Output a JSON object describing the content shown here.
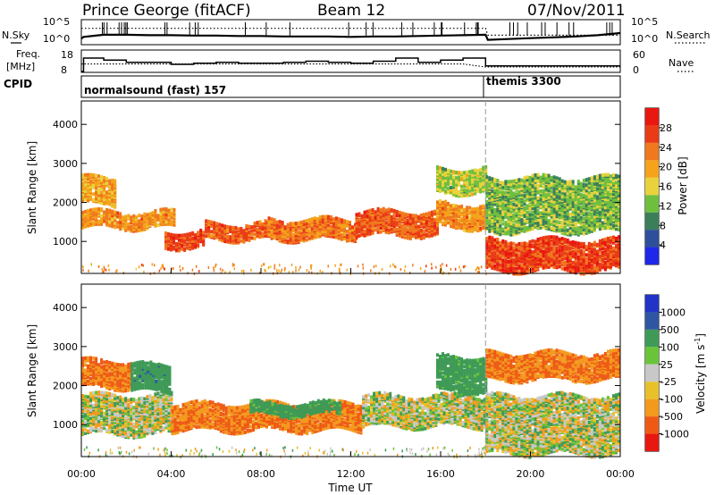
{
  "header": {
    "station": "Prince George (fitACF)",
    "beam": "Beam 12",
    "date": "07/Nov/2011"
  },
  "strip_labels": {
    "nsky": "N.Sky",
    "nsky_ticks": [
      "10^5",
      "10^0"
    ],
    "nsearch": "N.Search",
    "nsearch_ticks": [
      "10^5",
      "10^0"
    ],
    "freq_line1": "Freq.",
    "freq_line2": "[MHz]",
    "freq_ticks": [
      "18",
      "8"
    ],
    "nave": "Nave",
    "nave_ticks": [
      "60",
      "0"
    ],
    "cpid": "CPID",
    "mode1": "normalsound (fast) 157",
    "mode2": "themis 3300"
  },
  "colors": {
    "power": [
      "#1f27e8",
      "#2e4f9a",
      "#3a7f5a",
      "#6fbf3e",
      "#e9d23c",
      "#f4a31a",
      "#f0781d",
      "#ea3b17",
      "#e8170f"
    ],
    "velocity": [
      "#2234c8",
      "#2e56a3",
      "#3e9a56",
      "#6bc33a",
      "#c8c8c8",
      "#e8c12a",
      "#f39a1e",
      "#ee5a16",
      "#e8170f"
    ]
  },
  "chart_data": [
    {
      "type": "line",
      "panel": "N.Sky / N.Search",
      "x_unit": "hours UT",
      "x": [
        0,
        0.1,
        1,
        2,
        3,
        4,
        5,
        6,
        7,
        8,
        9,
        10,
        11,
        12,
        13,
        14,
        15,
        16,
        17,
        18,
        18.1,
        19,
        20,
        21,
        22,
        23,
        24
      ],
      "series": [
        {
          "name": "N.Sky",
          "values": [
            1,
            1.4,
            1.9,
            1.9,
            1.8,
            1.8,
            1.7,
            1.7,
            1.6,
            1.6,
            1.5,
            1.5,
            1.5,
            1.4,
            1.5,
            1.5,
            1.6,
            1.7,
            1.8,
            1.9,
            0.7,
            0.9,
            1.1,
            1.3,
            1.5,
            1.8,
            2.3
          ]
        },
        {
          "name": "N.Search",
          "values": [
            3.4,
            3.4,
            3.4,
            3.4,
            3.4,
            3.4,
            3.4,
            3.4,
            3.4,
            3.4,
            3.4,
            3.4,
            3.4,
            3.4,
            3.4,
            3.4,
            3.4,
            3.4,
            3.4,
            3.4,
            1.8,
            1.8,
            1.8,
            1.8,
            1.8,
            1.8,
            1.8
          ]
        }
      ]
    },
    {
      "type": "line",
      "panel": "Freq. [MHz] / Nave",
      "x_unit": "hours UT",
      "x": [
        0,
        0.1,
        1,
        2,
        3,
        4,
        5,
        6,
        7,
        8,
        9,
        10,
        11,
        12,
        13,
        14,
        15,
        16,
        17,
        18,
        24
      ],
      "series": [
        {
          "name": "Freq",
          "values": [
            8,
            14.5,
            13.5,
            12.5,
            12.5,
            11.5,
            12,
            12.5,
            12,
            12,
            12.5,
            13,
            12.5,
            12,
            13,
            14.5,
            12.5,
            13.5,
            14.5,
            10.7,
            10.7
          ]
        },
        {
          "name": "Nave",
          "values": [
            22,
            22,
            22,
            22,
            22,
            22,
            22,
            22,
            22,
            22,
            22,
            22,
            22,
            22,
            22,
            22,
            22,
            22,
            22,
            13,
            13
          ]
        }
      ]
    },
    {
      "type": "heatmap",
      "panel": "Power",
      "x_unit": "hours UT",
      "ylabel": "Slant Range [km]",
      "xlim": [
        0,
        24
      ],
      "ylim": [
        180,
        4600
      ],
      "y_ticks": [
        1000,
        2000,
        3000,
        4000
      ],
      "colorbar": {
        "label": "Power [dB]",
        "range": [
          0,
          32
        ],
        "ticks": [
          4,
          8,
          12,
          16,
          20,
          24,
          28
        ]
      },
      "echo_bands": [
        {
          "start": 0,
          "end": 4.2,
          "low": 1400,
          "high": 1800,
          "value": 22
        },
        {
          "start": 0,
          "end": 1.5,
          "low": 2000,
          "high": 2700,
          "value": 20
        },
        {
          "start": 3.7,
          "end": 5.5,
          "low": 900,
          "high": 1300,
          "value": 27
        },
        {
          "start": 5.5,
          "end": 8.3,
          "low": 1100,
          "high": 1500,
          "value": 26
        },
        {
          "start": 8.3,
          "end": 12.2,
          "low": 1100,
          "high": 1600,
          "value": 24
        },
        {
          "start": 12.2,
          "end": 15.8,
          "low": 1200,
          "high": 1800,
          "value": 26
        },
        {
          "start": 15.8,
          "end": 18,
          "low": 1400,
          "high": 2000,
          "value": 22
        },
        {
          "start": 15.8,
          "end": 18,
          "low": 2300,
          "high": 2900,
          "value": 14
        },
        {
          "start": 18,
          "end": 24,
          "low": 300,
          "high": 1100,
          "value": 28
        },
        {
          "start": 18,
          "end": 24,
          "low": 1300,
          "high": 2700,
          "value": 12
        }
      ],
      "time_ticks": [
        "00:00",
        "04:00",
        "08:00",
        "12:00",
        "16:00",
        "20:00",
        "00:00"
      ]
    },
    {
      "type": "heatmap",
      "panel": "Velocity",
      "x_unit": "hours UT",
      "ylabel": "Slant Range [km]",
      "xlim": [
        0,
        24
      ],
      "ylim": [
        180,
        4600
      ],
      "y_ticks": [
        1000,
        2000,
        3000,
        4000
      ],
      "colorbar": {
        "label": "Velocity [m s^-1]",
        "ticks": [
          1000,
          500,
          100,
          25,
          -25,
          -100,
          -500,
          -1000
        ]
      },
      "echo_bands": [
        {
          "start": 0,
          "end": 4.0,
          "low": 800,
          "high": 1800,
          "value": 0
        },
        {
          "start": 0,
          "end": 2.2,
          "low": 2000,
          "high": 2700,
          "value": -300
        },
        {
          "start": 2.2,
          "end": 4.0,
          "low": 1900,
          "high": 2600,
          "value": 200
        },
        {
          "start": 4.0,
          "end": 12.5,
          "low": 900,
          "high": 1600,
          "value": -300
        },
        {
          "start": 7.5,
          "end": 11.5,
          "low": 1300,
          "high": 1600,
          "value": 150
        },
        {
          "start": 12.5,
          "end": 18,
          "low": 1000,
          "high": 1800,
          "value": 0
        },
        {
          "start": 15.8,
          "end": 18,
          "low": 1900,
          "high": 2800,
          "value": 150
        },
        {
          "start": 18,
          "end": 24,
          "low": 300,
          "high": 1800,
          "value": 0
        },
        {
          "start": 18,
          "end": 24,
          "low": 2200,
          "high": 2900,
          "value": -300
        }
      ],
      "time_ticks": [
        "00:00",
        "04:00",
        "08:00",
        "12:00",
        "16:00",
        "20:00",
        "00:00"
      ],
      "xlabel": "Time UT"
    }
  ]
}
